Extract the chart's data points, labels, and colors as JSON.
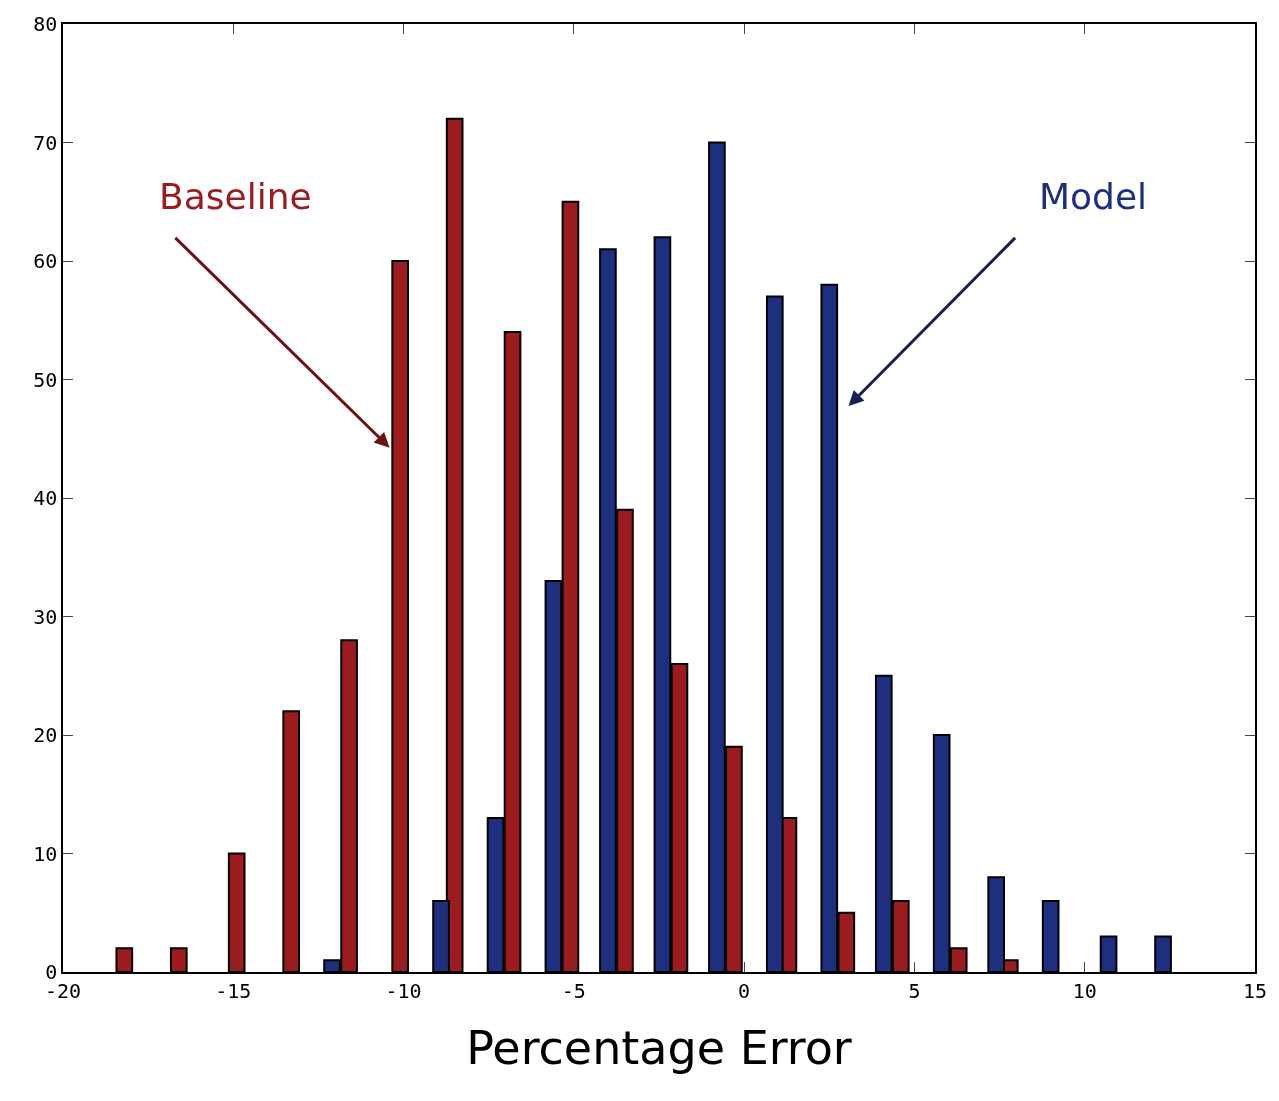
{
  "chart_data": {
    "type": "bar",
    "xlabel": "Percentage Error",
    "series": [
      {
        "name": "Baseline",
        "color": "#9b1b1f",
        "x": [
          -18.2,
          -16.6,
          -14.9,
          -13.3,
          -11.6,
          -10.1,
          -8.5,
          -6.8,
          -5.1,
          -3.5,
          -1.9,
          -0.3,
          1.3,
          3.0,
          4.6,
          6.3,
          7.8
        ],
        "values": [
          2,
          2,
          10,
          22,
          28,
          60,
          72,
          54,
          65,
          39,
          26,
          19,
          13,
          5,
          6,
          2,
          1
        ]
      },
      {
        "name": "Model",
        "color": "#1f2f80",
        "x": [
          -12.1,
          -8.9,
          -7.3,
          -5.6,
          -4.0,
          -2.4,
          -0.8,
          0.9,
          2.5,
          4.1,
          5.8,
          7.4,
          9.0,
          10.7,
          12.3
        ],
        "values": [
          1,
          6,
          13,
          33,
          61,
          62,
          70,
          57,
          58,
          25,
          20,
          8,
          6,
          3,
          3
        ]
      }
    ],
    "xlim": [
      -20,
      15
    ],
    "xticks": [
      -20,
      -15,
      -10,
      -5,
      0,
      5,
      10,
      15
    ],
    "ylim": [
      0,
      80
    ],
    "yticks": [
      0,
      10,
      20,
      30,
      40,
      50,
      60,
      70,
      80
    ],
    "legend": false
  }
}
